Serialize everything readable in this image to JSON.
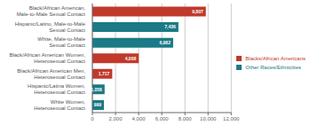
{
  "chart_data": {
    "type": "bar",
    "orientation": "horizontal",
    "categories": [
      "Black/African American,\nMale-to-Male Sexual Contact",
      "Hispanic/Latino, Male-to-Male\nSexual Contact",
      "White, Male-to-Male\nSexual Contact",
      "Black/African American Women,\nHeterosexual Contact",
      "Black/African American Men,\nHeterosexual Contact",
      "Hispanic/Latina Women,\nHeterosexual Contact",
      "White Women,\nHeterosexual Contact"
    ],
    "series": [
      {
        "name": "Blacks/African Americans",
        "color": "#c0392b",
        "values": [
          9807,
          null,
          null,
          4008,
          1717,
          null,
          null
        ],
        "value_labels": [
          "9,807",
          null,
          null,
          "4,008",
          "1,717",
          null,
          null
        ]
      },
      {
        "name": "Other Races/Ethnicities",
        "color": "#1a7a85",
        "values": [
          null,
          7436,
          6982,
          null,
          null,
          1058,
          999
        ],
        "value_labels": [
          null,
          "7,436",
          "6,982",
          null,
          null,
          "1,058",
          "999"
        ]
      }
    ],
    "xlim": [
      0,
      12000
    ],
    "xticks": [
      0,
      {
        "value": 2000,
        "label": "2,000"
      },
      {
        "value": 4000,
        "label": "4,000"
      },
      {
        "value": 6000,
        "label": "6,000"
      },
      {
        "value": 8000,
        "label": "8,000"
      },
      {
        "value": 10000,
        "label": "10,000"
      },
      {
        "value": 12000,
        "label": "12,000"
      }
    ],
    "grid": true,
    "legend": "right",
    "data_labels": true
  }
}
